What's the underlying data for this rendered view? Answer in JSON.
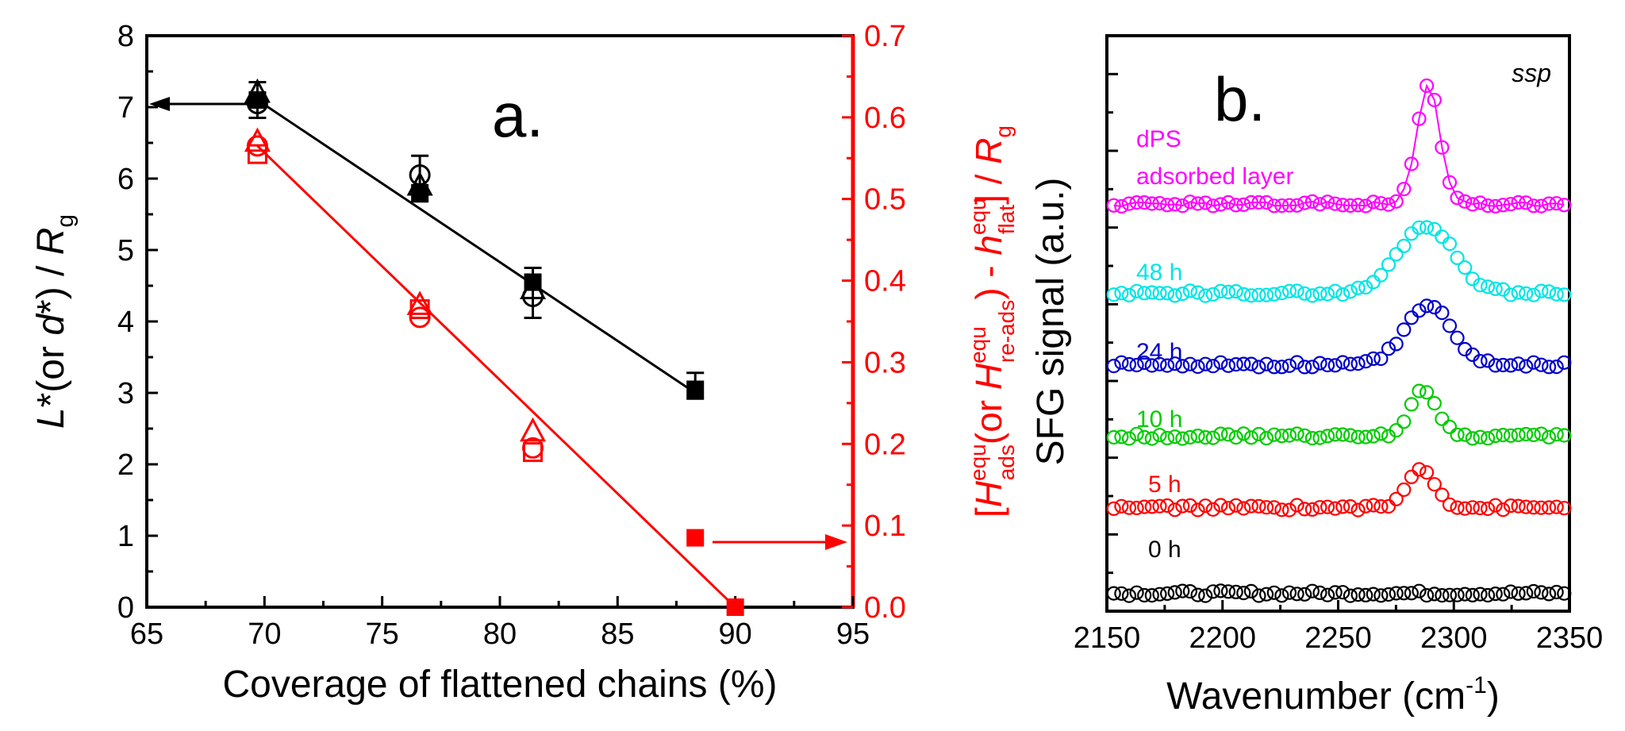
{
  "panel_a": {
    "panel_label": "a.",
    "xlabel": "Coverage of flattened chains (%)",
    "ylabel_left": {
      "L": "L",
      "a": "*(or ",
      "d": "d",
      "b": "*) / ",
      "R": "R",
      "sub": "g"
    },
    "ylabel_right": {
      "br1": "[",
      "H1": "H",
      "sup1": "equ",
      "sub1": "ads",
      "mid": "(or ",
      "H2": "H",
      "sup2": "equ",
      "sub2": "re-ads",
      "close": ") - ",
      "h": "h",
      "sup3": "equ",
      "sub3": "flat",
      "br2": "] / ",
      "R": "R",
      "sub4": "g"
    },
    "xticks": [
      "65",
      "70",
      "75",
      "80",
      "85",
      "90",
      "95"
    ],
    "yticks_left": [
      "0",
      "1",
      "2",
      "3",
      "4",
      "5",
      "6",
      "7",
      "8"
    ],
    "yticks_right": [
      "0.0",
      "0.1",
      "0.2",
      "0.3",
      "0.4",
      "0.5",
      "0.6",
      "0.7"
    ],
    "colors": {
      "left_axis": "#000000",
      "right_axis": "#ff0000"
    }
  },
  "panel_b": {
    "panel_label": "b.",
    "polarization": "ssp",
    "xlabel_main": "Wavenumber (cm",
    "xlabel_sup": "-1",
    "xlabel_close": ")",
    "ylabel": "SFG signal (a.u.)",
    "xticks": [
      "2150",
      "2200",
      "2250",
      "2300",
      "2350"
    ],
    "labels": [
      "0 h",
      "5 h",
      "10 h",
      "24 h",
      "48 h",
      "dPS",
      "adsorbed layer"
    ]
  },
  "chart_data": [
    {
      "type": "scatter",
      "panel": "a",
      "x_range": [
        65,
        95
      ],
      "y_left_range": [
        0,
        8
      ],
      "y_right_range": [
        0,
        0.7
      ],
      "series": [
        {
          "axis": "left",
          "color": "#000000",
          "marker": "filled-square",
          "x": [
            69.7,
            76.6,
            81.4,
            88.3
          ],
          "y": [
            7.1,
            5.8,
            4.55,
            3.05
          ]
        },
        {
          "axis": "left",
          "color": "#000000",
          "marker": "open-circle",
          "x": [
            69.7,
            76.6,
            81.4
          ],
          "y": [
            7.05,
            6.05,
            4.35
          ]
        },
        {
          "axis": "left",
          "color": "#000000",
          "marker": "open-triangle",
          "x": [
            69.7,
            76.6,
            81.4
          ],
          "y": [
            7.2,
            5.9,
            4.45
          ]
        },
        {
          "axis": "left",
          "color": "#000000",
          "marker": "line",
          "x": [
            69.7,
            88.3
          ],
          "y": [
            7.1,
            3.0
          ]
        },
        {
          "axis": "right",
          "color": "#ff0000",
          "marker": "filled-square",
          "x": [
            88.3,
            90.0
          ],
          "y": [
            0.085,
            0.0
          ]
        },
        {
          "axis": "right",
          "color": "#ff0000",
          "marker": "open-square",
          "x": [
            69.7,
            76.6,
            81.4
          ],
          "y": [
            0.555,
            0.365,
            0.19
          ]
        },
        {
          "axis": "right",
          "color": "#ff0000",
          "marker": "open-circle",
          "x": [
            69.7,
            76.6,
            81.4
          ],
          "y": [
            0.565,
            0.355,
            0.195
          ]
        },
        {
          "axis": "right",
          "color": "#ff0000",
          "marker": "open-triangle",
          "x": [
            69.7,
            76.6,
            81.4
          ],
          "y": [
            0.57,
            0.37,
            0.215
          ]
        },
        {
          "axis": "right",
          "color": "#ff0000",
          "marker": "line",
          "x": [
            69.7,
            90.0
          ],
          "y": [
            0.565,
            0.0
          ]
        }
      ],
      "error_bars_left": [
        {
          "x": 69.7,
          "y": 7.1,
          "err": 0.25
        },
        {
          "x": 76.6,
          "y": 6.0,
          "err": 0.32
        },
        {
          "x": 81.4,
          "y": 4.4,
          "err": 0.35
        },
        {
          "x": 88.3,
          "y": 3.1,
          "err": 0.18
        }
      ]
    },
    {
      "type": "line",
      "panel": "b",
      "x_range": [
        2150,
        2350
      ],
      "series": [
        {
          "name": "0 h",
          "color": "#000000",
          "offset": 0.25,
          "peak_center": 2287,
          "peak_height": 0.0,
          "peak_width": 6
        },
        {
          "name": "5 h",
          "color": "#ff0000",
          "offset": 1.45,
          "peak_center": 2286,
          "peak_height": 0.55,
          "peak_width": 6
        },
        {
          "name": "10 h",
          "color": "#00cc00",
          "offset": 2.45,
          "peak_center": 2287,
          "peak_height": 0.65,
          "peak_width": 6
        },
        {
          "name": "24 h",
          "color": "#0000cc",
          "offset": 3.45,
          "peak_center": 2289,
          "peak_height": 0.85,
          "peak_width": 10
        },
        {
          "name": "48 h",
          "color": "#00e5e5",
          "offset": 4.45,
          "peak_center": 2288,
          "peak_height": 0.95,
          "peak_width": 12
        },
        {
          "name": "dPS adsorbed layer",
          "color": "#ff00ff",
          "offset": 5.7,
          "peak_center": 2289,
          "peak_height": 1.65,
          "peak_width": 5
        }
      ]
    }
  ]
}
